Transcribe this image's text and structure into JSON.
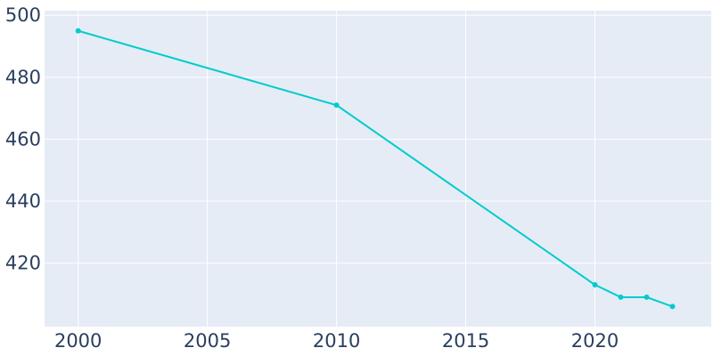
{
  "colors": {
    "plot_bg": "#e5ecf6",
    "grid": "#ffffff",
    "line": "#00cccc",
    "text": "#2a3f5f"
  },
  "chart_data": {
    "type": "line",
    "title": "",
    "xlabel": "",
    "ylabel": "",
    "x": [
      2000,
      2010,
      2020,
      2021,
      2022,
      2023
    ],
    "series": [
      {
        "values": [
          495,
          471,
          413,
          409,
          409,
          406
        ]
      }
    ],
    "xlim": [
      1998.7,
      2024.5
    ],
    "ylim": [
      399.5,
      501.5
    ],
    "x_ticks": [
      2000,
      2005,
      2010,
      2015,
      2020
    ],
    "x_tick_labels": [
      "2000",
      "2005",
      "2010",
      "2015",
      "2020"
    ],
    "y_ticks": [
      420,
      440,
      460,
      480,
      500
    ],
    "y_tick_labels": [
      "420",
      "440",
      "460",
      "480",
      "500"
    ],
    "grid": true,
    "legend": "none"
  }
}
